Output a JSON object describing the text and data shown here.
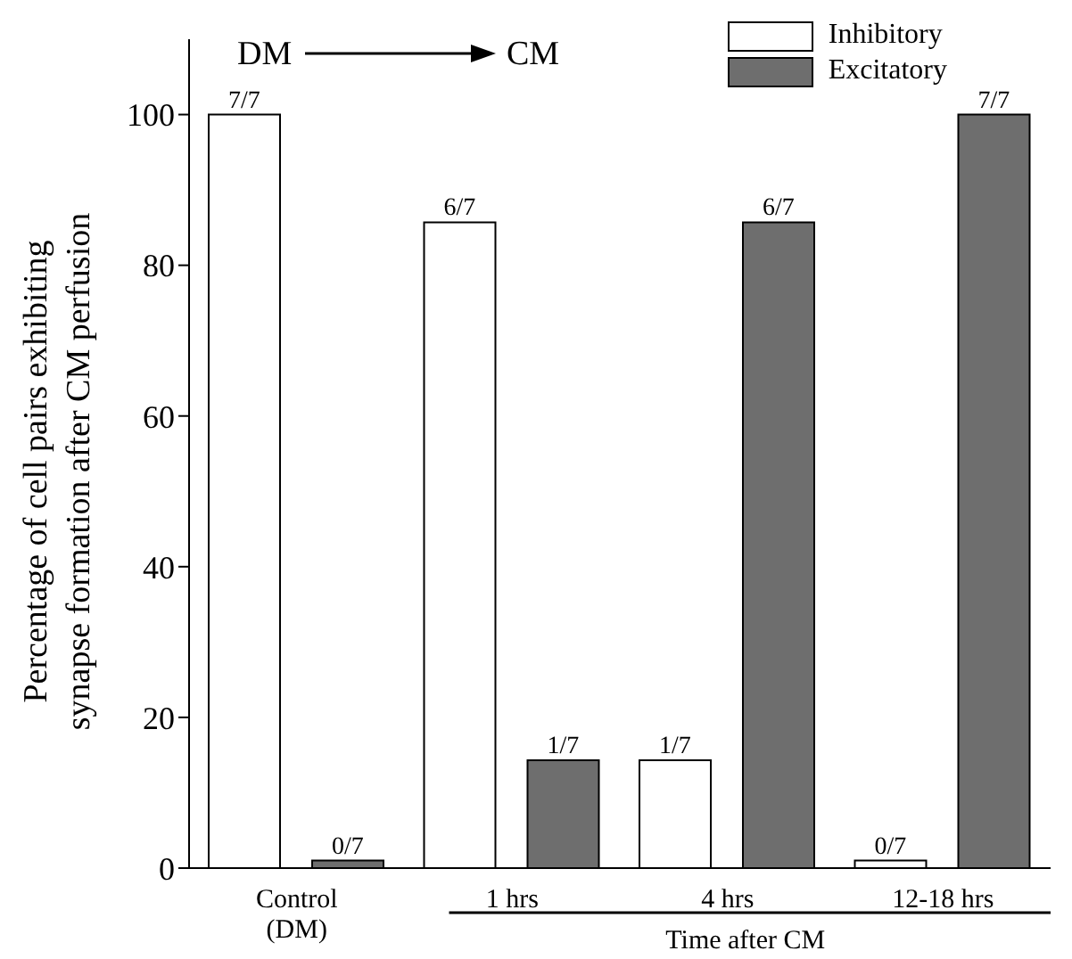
{
  "chart_data": {
    "type": "bar",
    "ylabel": "Percentage of cell pairs exhibiting synapse formation after CM perfusion",
    "categories": [
      "Control\n(DM)",
      "1 hrs",
      "4 hrs",
      "12-18 hrs"
    ],
    "series": [
      {
        "name": "Inhibitory",
        "color": "#ffffff",
        "values": [
          100,
          85.7,
          14.3,
          1
        ],
        "value_labels": [
          "7/7",
          "6/7",
          "1/7",
          "0/7"
        ]
      },
      {
        "name": "Excitatory",
        "color": "#6e6e6e",
        "values": [
          1,
          14.3,
          85.7,
          100
        ],
        "value_labels": [
          "0/7",
          "1/7",
          "6/7",
          "7/7"
        ]
      }
    ],
    "ylim": [
      0,
      110
    ],
    "yticks": [
      0,
      20,
      40,
      60,
      80,
      100
    ],
    "legend": "top right",
    "annotations": [
      "DM",
      "CM",
      "Time after CM"
    ]
  }
}
